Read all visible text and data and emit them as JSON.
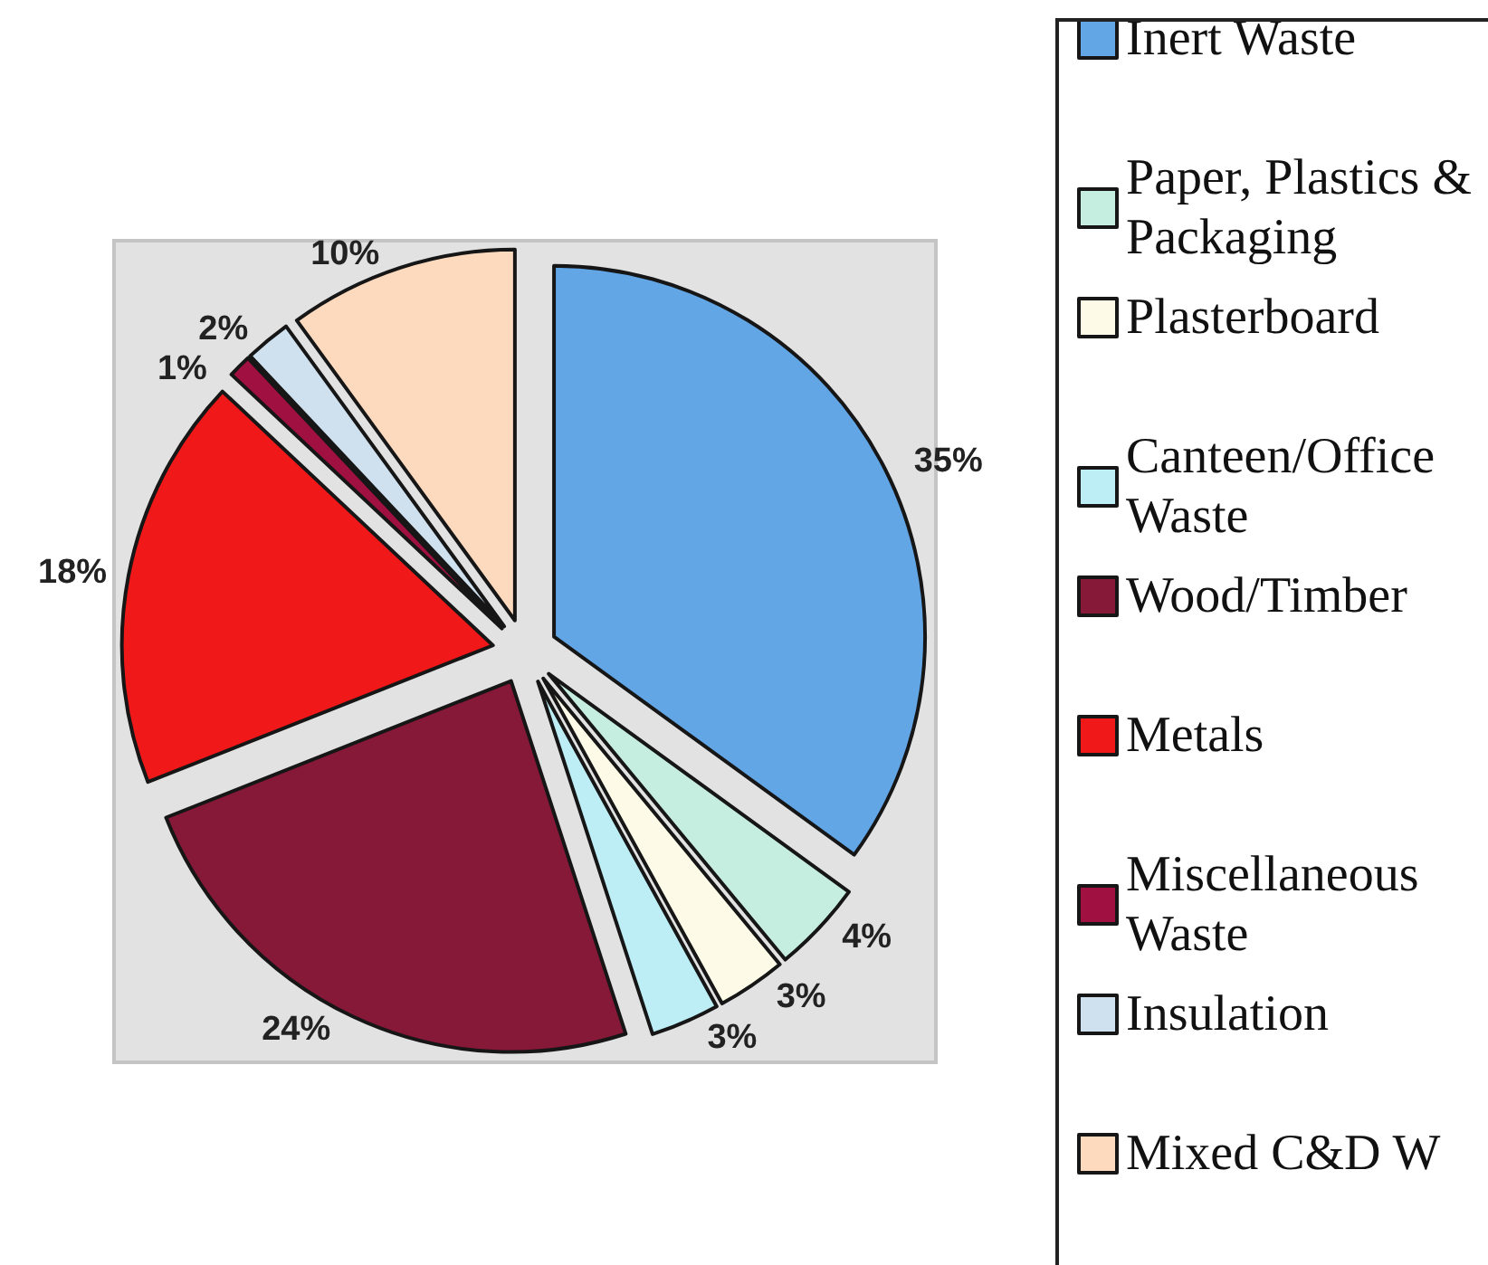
{
  "chart_data": {
    "type": "pie",
    "categories": [
      "Inert Waste",
      "Paper, Plastics & Packaging",
      "Plasterboard",
      "Canteen/Office Waste",
      "Wood/Timber",
      "Metals",
      "Miscellaneous Waste",
      "Insulation",
      "Mixed C&D W"
    ],
    "values": [
      35,
      4,
      3,
      3,
      24,
      18,
      1,
      2,
      10
    ],
    "colors": [
      "#62a6e6",
      "#c6eee0",
      "#fdfbe8",
      "#bdeef6",
      "#861838",
      "#f01818",
      "#a01040",
      "#cfe0ee",
      "#fdd9bd"
    ],
    "value_labels": [
      "35%",
      "4%",
      "3%",
      "3%",
      "24%",
      "18%",
      "1%",
      "2%",
      "10%"
    ],
    "legend": "right"
  }
}
